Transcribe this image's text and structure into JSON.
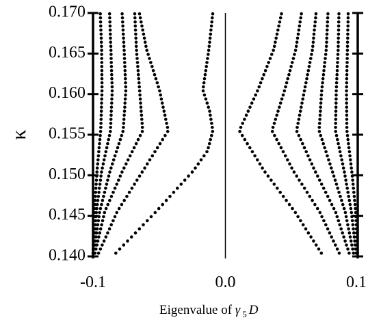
{
  "chart_data": {
    "type": "scatter",
    "title": "",
    "xlabel": {
      "prefix": "Eigenvalue of ",
      "symbol": "γ",
      "subscript": "5",
      "operator": "D"
    },
    "ylabel": "κ",
    "xlim": [
      -0.1,
      0.1
    ],
    "ylim": [
      0.14,
      0.17
    ],
    "x_ticks": [
      {
        "value": -0.1,
        "label": "-0.1"
      },
      {
        "value": 0.0,
        "label": "0.0"
      },
      {
        "value": 0.1,
        "label": "0.1"
      }
    ],
    "y_ticks": [
      {
        "value": 0.14,
        "label": "0.140"
      },
      {
        "value": 0.145,
        "label": "0.145"
      },
      {
        "value": 0.15,
        "label": "0.150"
      },
      {
        "value": 0.155,
        "label": "0.155"
      },
      {
        "value": 0.16,
        "label": "0.160"
      },
      {
        "value": 0.165,
        "label": "0.165"
      },
      {
        "value": 0.17,
        "label": "0.170"
      }
    ],
    "kappa_step": 0.0005,
    "zero_line": true,
    "series": [
      {
        "control": [
          [
            0.1404,
            -0.0828
          ],
          [
            0.1455,
            -0.0525
          ],
          [
            0.1505,
            -0.0245
          ],
          [
            0.153,
            -0.0135
          ],
          [
            0.1555,
            -0.0095
          ],
          [
            0.158,
            -0.012
          ],
          [
            0.1605,
            -0.017
          ],
          [
            0.1655,
            -0.0125
          ],
          [
            0.17,
            -0.0095
          ]
        ]
      },
      {
        "control": [
          [
            0.1404,
            -0.0958
          ],
          [
            0.1455,
            -0.0818
          ],
          [
            0.1505,
            -0.0625
          ],
          [
            0.1555,
            -0.0432
          ],
          [
            0.1605,
            -0.0498
          ],
          [
            0.1655,
            -0.0595
          ],
          [
            0.17,
            -0.065
          ]
        ]
      },
      {
        "control": [
          [
            0.1404,
            -0.0985
          ],
          [
            0.1455,
            -0.0912
          ],
          [
            0.1505,
            -0.0778
          ],
          [
            0.1555,
            -0.0625
          ],
          [
            0.1605,
            -0.0648
          ],
          [
            0.1655,
            -0.0672
          ],
          [
            0.17,
            -0.0685
          ]
        ]
      },
      {
        "control": [
          [
            0.1404,
            -0.0995
          ],
          [
            0.1455,
            -0.095
          ],
          [
            0.1505,
            -0.0872
          ],
          [
            0.1555,
            -0.0772
          ],
          [
            0.1605,
            -0.0752
          ],
          [
            0.1655,
            -0.0765
          ],
          [
            0.17,
            -0.078
          ]
        ]
      },
      {
        "control": [
          [
            0.1404,
            -0.0998
          ],
          [
            0.1455,
            -0.0975
          ],
          [
            0.1505,
            -0.0935
          ],
          [
            0.1555,
            -0.0868
          ],
          [
            0.1605,
            -0.0855
          ],
          [
            0.1655,
            -0.0865
          ],
          [
            0.17,
            -0.0875
          ]
        ]
      },
      {
        "control": [
          [
            0.1404,
            -0.1
          ],
          [
            0.1455,
            -0.099
          ],
          [
            0.1505,
            -0.097
          ],
          [
            0.1555,
            -0.0942
          ],
          [
            0.1605,
            -0.0932
          ],
          [
            0.1655,
            -0.0935
          ],
          [
            0.17,
            -0.0945
          ]
        ]
      },
      {
        "control": [
          [
            0.1404,
            0.0725
          ],
          [
            0.1455,
            0.0525
          ],
          [
            0.1505,
            0.0295
          ],
          [
            0.1555,
            0.0105
          ],
          [
            0.1605,
            0.0245
          ],
          [
            0.1655,
            0.0365
          ],
          [
            0.17,
            0.0425
          ]
        ]
      },
      {
        "control": [
          [
            0.1404,
            0.086
          ],
          [
            0.1455,
            0.0712
          ],
          [
            0.1505,
            0.0515
          ],
          [
            0.1555,
            0.0352
          ],
          [
            0.1605,
            0.0448
          ],
          [
            0.1655,
            0.0532
          ],
          [
            0.17,
            0.0575
          ]
        ]
      },
      {
        "control": [
          [
            0.1404,
            0.0935
          ],
          [
            0.1455,
            0.0832
          ],
          [
            0.1505,
            0.0678
          ],
          [
            0.1555,
            0.0538
          ],
          [
            0.1605,
            0.0598
          ],
          [
            0.1655,
            0.0658
          ],
          [
            0.17,
            0.0685
          ]
        ]
      },
      {
        "control": [
          [
            0.1404,
            0.0968
          ],
          [
            0.1455,
            0.0905
          ],
          [
            0.1505,
            0.0808
          ],
          [
            0.1555,
            0.0708
          ],
          [
            0.1605,
            0.0728
          ],
          [
            0.1655,
            0.0762
          ],
          [
            0.17,
            0.0775
          ]
        ]
      },
      {
        "control": [
          [
            0.1404,
            0.0988
          ],
          [
            0.1455,
            0.0952
          ],
          [
            0.1505,
            0.0898
          ],
          [
            0.1555,
            0.0832
          ],
          [
            0.1605,
            0.0838
          ],
          [
            0.1655,
            0.0852
          ],
          [
            0.17,
            0.0858
          ]
        ]
      },
      {
        "control": [
          [
            0.1404,
            0.0998
          ],
          [
            0.1455,
            0.0985
          ],
          [
            0.1505,
            0.0955
          ],
          [
            0.1555,
            0.0918
          ],
          [
            0.1605,
            0.0915
          ],
          [
            0.1655,
            0.0922
          ],
          [
            0.17,
            0.0928
          ]
        ]
      }
    ]
  }
}
